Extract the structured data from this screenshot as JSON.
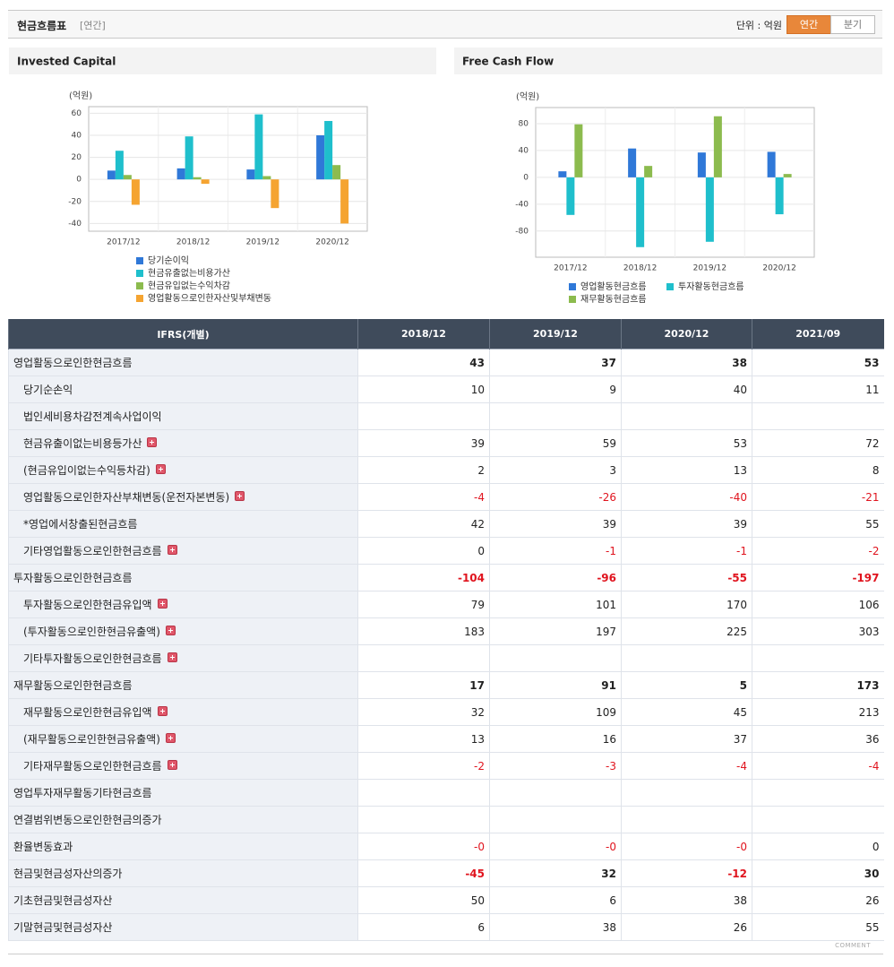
{
  "header": {
    "title": "현금흐름표",
    "period": "[연간]",
    "unit": "단위 : 억원",
    "tabs": [
      "연간",
      "분기"
    ],
    "active_tab": 0
  },
  "chart_data": [
    {
      "type": "bar",
      "title": "Invested Capital",
      "y_label": "(억원)",
      "categories": [
        "2017/12",
        "2018/12",
        "2019/12",
        "2020/12"
      ],
      "series": [
        {
          "name": "당기순이익",
          "color": "#2f78d8",
          "values": [
            8,
            10,
            9,
            40
          ]
        },
        {
          "name": "현금유출없는비용가산",
          "color": "#1fbfcc",
          "values": [
            26,
            39,
            59,
            53
          ]
        },
        {
          "name": "현금유입없는수익차감",
          "color": "#8cbb4e",
          "values": [
            4,
            2,
            3,
            13
          ]
        },
        {
          "name": "영업활동으로인한자산및부채변동",
          "color": "#f5a431",
          "values": [
            -23,
            -4,
            -26,
            -40
          ]
        }
      ],
      "ylim": [
        -47,
        66
      ],
      "yticks": [
        -40,
        -20,
        0,
        20,
        40,
        60
      ],
      "grid": true,
      "legend": "bottom"
    },
    {
      "type": "bar",
      "title": "Free Cash Flow",
      "y_label": "(억원)",
      "categories": [
        "2017/12",
        "2018/12",
        "2019/12",
        "2020/12"
      ],
      "series": [
        {
          "name": "영업활동현금흐름",
          "color": "#2f78d8",
          "values": [
            9,
            43,
            37,
            38
          ]
        },
        {
          "name": "투자활동현금흐름",
          "color": "#1fbfcc",
          "values": [
            -56,
            -104,
            -96,
            -55
          ]
        },
        {
          "name": "재무활동현금흐름",
          "color": "#8cbb4e",
          "values": [
            79,
            17,
            91,
            5
          ]
        }
      ],
      "ylim": [
        -119,
        104
      ],
      "yticks": [
        -80,
        -40,
        0,
        40,
        80
      ],
      "grid": true,
      "legend": "bottom"
    }
  ],
  "table": {
    "columns": [
      "IFRS(개별)",
      "2018/12",
      "2019/12",
      "2020/12",
      "2021/09"
    ],
    "rows": [
      {
        "label": "영업활동으로인한현금흐름",
        "bold": true,
        "cells": [
          "43",
          "37",
          "38",
          "53"
        ]
      },
      {
        "label": "당기순손익",
        "sub": true,
        "cells": [
          "10",
          "9",
          "40",
          "11"
        ]
      },
      {
        "label": "법인세비용차감전계속사업이익",
        "sub": true,
        "cells": [
          null,
          null,
          null,
          null
        ]
      },
      {
        "label": "현금유출이없는비용등가산",
        "sub": true,
        "expand": true,
        "cells": [
          "39",
          "59",
          "53",
          "72"
        ]
      },
      {
        "label": "(현금유입이없는수익등차감)",
        "sub": true,
        "expand": true,
        "cells": [
          "2",
          "3",
          "13",
          "8"
        ]
      },
      {
        "label": "영업활동으로인한자산부채변동(운전자본변동)",
        "sub": true,
        "expand": true,
        "cells": [
          "-4",
          "-26",
          "-40",
          "-21"
        ]
      },
      {
        "label": "*영업에서창출된현금흐름",
        "sub": true,
        "cells": [
          "42",
          "39",
          "39",
          "55"
        ]
      },
      {
        "label": "기타영업활동으로인한현금흐름",
        "sub": true,
        "expand": true,
        "cells": [
          "0",
          "-1",
          "-1",
          "-2"
        ]
      },
      {
        "label": "투자활동으로인한현금흐름",
        "bold": true,
        "cells": [
          "-104",
          "-96",
          "-55",
          "-197"
        ]
      },
      {
        "label": "투자활동으로인한현금유입액",
        "sub": true,
        "expand": true,
        "cells": [
          "79",
          "101",
          "170",
          "106"
        ]
      },
      {
        "label": "(투자활동으로인한현금유출액)",
        "sub": true,
        "expand": true,
        "cells": [
          "183",
          "197",
          "225",
          "303"
        ]
      },
      {
        "label": "기타투자활동으로인한현금흐름",
        "sub": true,
        "expand": true,
        "cells": [
          null,
          null,
          null,
          null
        ]
      },
      {
        "label": "재무활동으로인한현금흐름",
        "bold": true,
        "cells": [
          "17",
          "91",
          "5",
          "173"
        ]
      },
      {
        "label": "재무활동으로인한현금유입액",
        "sub": true,
        "expand": true,
        "cells": [
          "32",
          "109",
          "45",
          "213"
        ]
      },
      {
        "label": "(재무활동으로인한현금유출액)",
        "sub": true,
        "expand": true,
        "cells": [
          "13",
          "16",
          "37",
          "36"
        ]
      },
      {
        "label": "기타재무활동으로인한현금흐름",
        "sub": true,
        "expand": true,
        "cells": [
          "-2",
          "-3",
          "-4",
          "-4"
        ]
      },
      {
        "label": "영업투자재무활동기타현금흐름",
        "cells": [
          null,
          null,
          null,
          null
        ]
      },
      {
        "label": "연결범위변동으로인한현금의증가",
        "cells": [
          null,
          null,
          null,
          null
        ]
      },
      {
        "label": "환율변동효과",
        "cells": [
          "-0",
          "-0",
          "-0",
          "0"
        ]
      },
      {
        "label": "현금및현금성자산의증가",
        "bold": true,
        "cells": [
          "-45",
          "32",
          "-12",
          "30"
        ]
      },
      {
        "label": "기초현금및현금성자산",
        "cells": [
          "50",
          "6",
          "38",
          "26"
        ]
      },
      {
        "label": "기말현금및현금성자산",
        "cells": [
          "6",
          "38",
          "26",
          "55"
        ]
      }
    ]
  },
  "footer": "COMMENT"
}
